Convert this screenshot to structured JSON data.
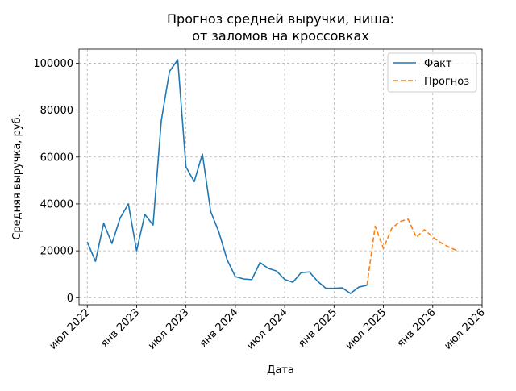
{
  "chart_data": {
    "type": "line",
    "title": [
      "Прогноз средней выручки, ниша:",
      "от заломов на кроссовках"
    ],
    "xlabel": "Дата",
    "ylabel": "Средняя выручка, руб.",
    "xlim": [
      "2022-06",
      "2026-07"
    ],
    "ylim": [
      -3000,
      106000
    ],
    "grid": true,
    "legend_position": "top-right",
    "x_ticks": [
      {
        "date": "2022-07",
        "label": "июл 2022"
      },
      {
        "date": "2023-01",
        "label": "янв 2023"
      },
      {
        "date": "2023-07",
        "label": "июл 2023"
      },
      {
        "date": "2024-01",
        "label": "янв 2024"
      },
      {
        "date": "2024-07",
        "label": "июл 2024"
      },
      {
        "date": "2025-01",
        "label": "янв 2025"
      },
      {
        "date": "2025-07",
        "label": "июл 2025"
      },
      {
        "date": "2026-01",
        "label": "янв 2026"
      },
      {
        "date": "2026-07",
        "label": "июл 2026"
      }
    ],
    "y_ticks": [
      {
        "value": 0,
        "label": "0"
      },
      {
        "value": 20000,
        "label": "20000"
      },
      {
        "value": 40000,
        "label": "40000"
      },
      {
        "value": 60000,
        "label": "60000"
      },
      {
        "value": 80000,
        "label": "80000"
      },
      {
        "value": 100000,
        "label": "100000"
      }
    ],
    "series": [
      {
        "name": "Факт",
        "color": "#1f77b4",
        "style": "solid",
        "x": [
          "2022-07",
          "2022-08",
          "2022-09",
          "2022-10",
          "2022-11",
          "2022-12",
          "2023-01",
          "2023-02",
          "2023-03",
          "2023-04",
          "2023-05",
          "2023-06",
          "2023-07",
          "2023-08",
          "2023-09",
          "2023-10",
          "2023-11",
          "2023-12",
          "2024-01",
          "2024-02",
          "2024-03",
          "2024-04",
          "2024-05",
          "2024-06",
          "2024-07",
          "2024-08",
          "2024-09",
          "2024-10",
          "2024-11",
          "2024-12",
          "2025-01",
          "2025-02",
          "2025-03",
          "2025-04",
          "2025-05"
        ],
        "y": [
          23800,
          15500,
          31800,
          23100,
          34000,
          40000,
          20000,
          35500,
          31000,
          75500,
          96500,
          101500,
          55800,
          49500,
          61300,
          36800,
          28000,
          16200,
          9000,
          8000,
          7700,
          15000,
          12500,
          11400,
          7800,
          6600,
          10700,
          11000,
          7000,
          4000,
          4000,
          4200,
          1800,
          4500,
          5300
        ]
      },
      {
        "name": "Прогноз",
        "color": "#ff7f0e",
        "style": "dashed",
        "x": [
          "2025-05",
          "2025-06",
          "2025-07",
          "2025-08",
          "2025-09",
          "2025-10",
          "2025-11",
          "2025-12",
          "2026-01",
          "2026-02",
          "2026-03",
          "2026-04"
        ],
        "y": [
          5300,
          30500,
          21000,
          29500,
          32500,
          33500,
          25800,
          29000,
          25800,
          23400,
          21500,
          20000
        ]
      }
    ]
  }
}
